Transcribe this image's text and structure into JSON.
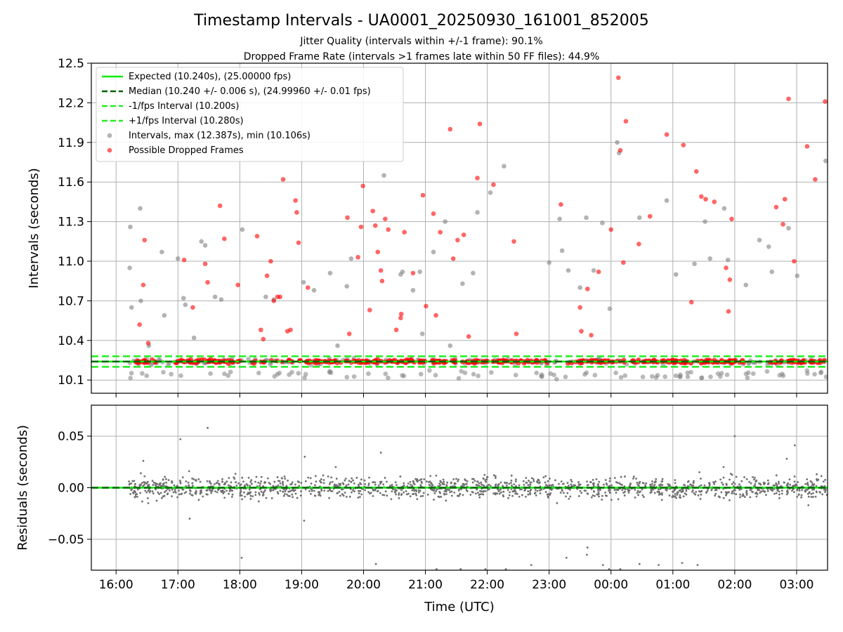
{
  "chart_data": [
    {
      "type": "scatter",
      "title": "Timestamp Intervals - UA0001_20250930_161001_852005",
      "subtitle_lines": [
        "Jitter Quality (intervals within +/-1 frame): 90.1%",
        "Dropped Frame Rate (intervals >1 frames late within 50 FF files): 44.9%"
      ],
      "ylabel": "Intervals (seconds)",
      "ylim": [
        10.0,
        12.5
      ],
      "yticks": [
        "10.1",
        "10.4",
        "10.7",
        "11.0",
        "11.3",
        "11.6",
        "11.9",
        "12.2",
        "12.5"
      ],
      "ytick_values": [
        10.1,
        10.4,
        10.7,
        11.0,
        11.3,
        11.6,
        11.9,
        12.2,
        12.5
      ],
      "xlim_hours": [
        15.6,
        27.5
      ],
      "grid": true,
      "legend_position": "upper-left",
      "reference_lines": [
        {
          "name": "Expected (10.240s), (25.00000 fps)",
          "value": 10.24,
          "color": "#00ee00",
          "style": "solid"
        },
        {
          "name": "Median (10.240 +/- 0.006 s), (24.99960 +/- 0.01 fps)",
          "value": 10.24,
          "color": "#006400",
          "style": "dashed"
        },
        {
          "name": "-1/fps Interval (10.200s)",
          "value": 10.2,
          "color": "#22ee22",
          "style": "dashed"
        },
        {
          "name": "+1/fps Interval (10.280s)",
          "value": 10.28,
          "color": "#22ee22",
          "style": "dashed"
        }
      ],
      "series": [
        {
          "name": "Intervals, max (12.387s), min (10.106s)",
          "color": "#808080",
          "x": [
            16.22,
            16.23,
            16.25,
            16.39,
            16.4,
            16.53,
            16.74,
            16.78,
            17.0,
            17.09,
            17.12,
            17.26,
            17.38,
            17.44,
            17.6,
            17.7,
            18.04,
            18.42,
            18.55,
            19.03,
            19.2,
            19.46,
            19.58,
            19.73,
            19.8,
            20.33,
            20.6,
            20.63,
            20.8,
            20.91,
            20.95,
            21.13,
            21.32,
            21.4,
            21.6,
            21.77,
            21.84,
            22.05,
            22.27,
            23.0,
            23.17,
            23.21,
            23.31,
            23.5,
            23.6,
            23.72,
            23.86,
            23.98,
            24.1,
            24.13,
            24.46,
            24.9,
            25.05,
            25.35,
            25.52,
            25.6,
            25.83,
            25.89,
            26.18,
            26.4,
            26.55,
            26.6,
            26.87,
            27.01,
            27.47
          ],
          "y": [
            10.95,
            11.26,
            10.65,
            11.4,
            10.7,
            10.36,
            11.07,
            10.59,
            11.02,
            10.72,
            10.67,
            10.42,
            11.15,
            11.12,
            10.73,
            10.71,
            11.24,
            10.73,
            10.71,
            10.84,
            10.78,
            10.91,
            10.36,
            10.81,
            11.02,
            11.65,
            10.9,
            10.92,
            10.78,
            10.92,
            10.45,
            11.07,
            11.3,
            10.36,
            10.83,
            10.91,
            11.37,
            11.52,
            11.72,
            10.99,
            11.32,
            11.08,
            10.93,
            10.8,
            11.33,
            10.93,
            11.29,
            10.64,
            11.9,
            11.82,
            11.33,
            11.46,
            10.9,
            10.98,
            11.3,
            11.02,
            11.4,
            11.01,
            10.82,
            11.16,
            11.11,
            10.92,
            11.25,
            10.89,
            11.76
          ],
          "dense_points": {
            "y_center": 10.24,
            "y_spread": 0.012,
            "secondary_y": 10.14,
            "x_start": 16.2,
            "x_end": 27.5
          }
        },
        {
          "name": "Possible Dropped Frames",
          "color": "#ff0000",
          "x": [
            16.38,
            16.44,
            16.46,
            16.52,
            17.1,
            17.24,
            17.44,
            17.48,
            17.68,
            17.75,
            17.97,
            18.28,
            18.34,
            18.38,
            18.44,
            18.5,
            18.55,
            18.61,
            18.65,
            18.7,
            18.77,
            18.82,
            18.9,
            18.92,
            18.95,
            19.1,
            19.74,
            19.77,
            19.91,
            19.96,
            19.99,
            20.1,
            20.15,
            20.19,
            20.23,
            20.28,
            20.3,
            20.35,
            20.4,
            20.53,
            20.6,
            20.61,
            20.66,
            20.8,
            20.96,
            21.01,
            21.13,
            21.17,
            21.24,
            21.4,
            21.45,
            21.52,
            21.62,
            21.7,
            21.84,
            21.88,
            22.1,
            22.43,
            22.47,
            23.19,
            23.5,
            23.52,
            23.62,
            23.68,
            23.8,
            24.0,
            24.12,
            24.15,
            24.2,
            24.24,
            24.45,
            24.63,
            24.9,
            25.17,
            25.3,
            25.38,
            25.46,
            25.53,
            25.67,
            25.86,
            25.9,
            25.92,
            25.95,
            26.67,
            26.78,
            26.81,
            26.87,
            26.96,
            27.17,
            27.3,
            27.46
          ],
          "y": [
            10.52,
            10.82,
            11.16,
            10.38,
            11.01,
            10.65,
            10.98,
            10.84,
            11.42,
            11.17,
            10.82,
            11.19,
            10.48,
            10.41,
            10.89,
            11.0,
            10.7,
            10.73,
            10.73,
            11.62,
            10.47,
            10.48,
            11.46,
            11.37,
            11.14,
            10.8,
            11.33,
            10.45,
            11.03,
            11.26,
            11.57,
            10.63,
            11.38,
            11.27,
            11.07,
            10.93,
            10.85,
            11.32,
            11.24,
            10.48,
            10.57,
            10.6,
            11.22,
            10.91,
            11.5,
            10.66,
            11.36,
            10.59,
            11.22,
            12.0,
            11.02,
            11.16,
            11.2,
            10.43,
            11.63,
            12.04,
            11.58,
            11.15,
            10.45,
            11.43,
            10.65,
            10.47,
            10.79,
            10.44,
            10.92,
            11.24,
            12.39,
            11.84,
            10.99,
            12.06,
            11.13,
            11.34,
            11.96,
            11.88,
            10.69,
            11.68,
            11.49,
            11.47,
            11.45,
            10.95,
            10.62,
            10.86,
            11.32,
            11.41,
            11.28,
            11.47,
            12.23,
            11.0,
            11.87,
            11.62,
            12.21
          ],
          "dense_points": {
            "y_center": 10.24,
            "x_start": 16.3,
            "x_end": 27.5
          }
        }
      ]
    },
    {
      "type": "scatter",
      "ylabel": "Residuals (seconds)",
      "xlabel": "Time (UTC)",
      "ylim": [
        -0.08,
        0.08
      ],
      "yticks": [
        "0.05",
        "0.00",
        "−0.05"
      ],
      "ytick_values": [
        0.05,
        0.0,
        -0.05
      ],
      "xlim_hours": [
        15.6,
        27.5
      ],
      "xticks": [
        "16:00",
        "17:00",
        "18:00",
        "19:00",
        "20:00",
        "21:00",
        "22:00",
        "23:00",
        "00:00",
        "01:00",
        "02:00",
        "03:00"
      ],
      "xtick_values": [
        16,
        17,
        18,
        19,
        20,
        21,
        22,
        23,
        24,
        25,
        26,
        27
      ],
      "grid": true,
      "reference_lines": [
        {
          "value": 0.0,
          "color": "#00ee00",
          "style": "solid"
        },
        {
          "value": 0.0,
          "color": "#006400",
          "style": "dashed"
        }
      ],
      "series": [
        {
          "color": "#707070",
          "x": [
            16.44,
            17.04,
            17.48,
            17.19,
            18.03,
            19.05,
            19.55,
            20.28,
            20.2,
            21.18,
            21.57,
            23.97,
            23.62,
            23.61,
            23.87,
            24.46,
            24.77,
            25.15,
            25.4,
            25.43,
            25.82,
            26.0,
            26.84,
            26.97,
            27.19,
            22.71,
            16.4,
            16.46,
            16.52,
            17.18,
            19.04,
            21.97,
            22.3,
            23.28,
            24.15
          ],
          "y": [
            0.026,
            0.047,
            0.058,
            -0.03,
            -0.068,
            0.03,
            0.02,
            0.034,
            -0.074,
            -0.079,
            -0.079,
            -0.079,
            -0.058,
            -0.065,
            -0.075,
            -0.074,
            -0.075,
            -0.073,
            -0.075,
            0.015,
            0.02,
            0.05,
            0.028,
            0.041,
            -0.017,
            -0.075,
            0.014,
            0.011,
            -0.015,
            0.016,
            -0.032,
            -0.079,
            -0.079,
            -0.068,
            -0.079
          ],
          "dense_band": {
            "center": 0.0,
            "spread": 0.009,
            "x_start": 16.2,
            "x_end": 27.5
          }
        }
      ]
    }
  ]
}
